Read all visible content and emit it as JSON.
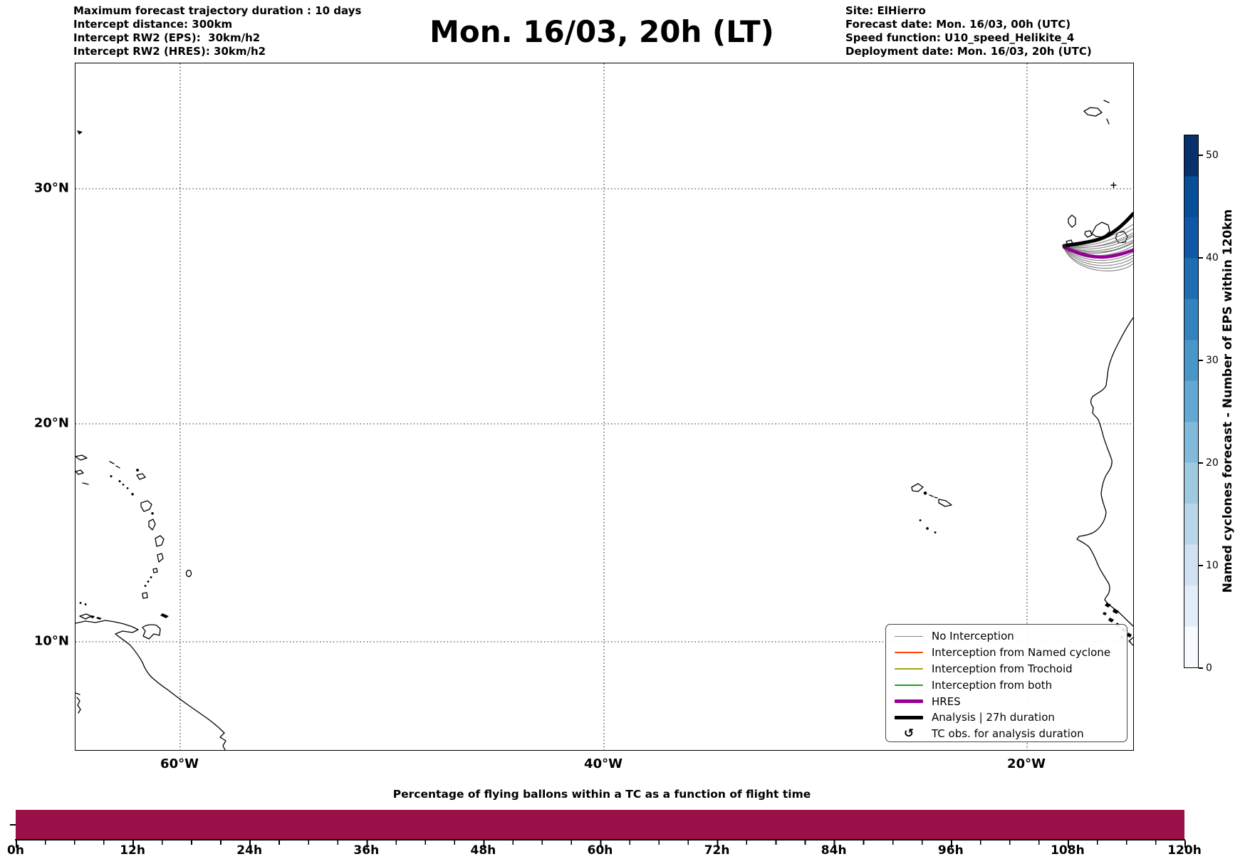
{
  "header": {
    "left_lines": [
      "Maximum forecast trajectory duration : 10 days",
      "Intercept distance: 300km",
      "Intercept RW2 (EPS):  30km/h2",
      "Intercept RW2 (HRES): 30km/h2"
    ],
    "title": "Mon. 16/03, 20h (LT)",
    "right_lines": [
      "Site: ElHierro",
      "Forecast date: Mon. 16/03, 00h (UTC)",
      "Speed function: U10_speed_Helikite_4",
      "Deployment date: Mon. 16/03, 20h (UTC)"
    ]
  },
  "map": {
    "lat_labels": [
      "30°N",
      "20°N",
      "10°N"
    ],
    "lon_labels": [
      "60°W",
      "40°W",
      "20°W"
    ],
    "coast_features": [
      "Bermuda",
      "Puerto Rico & Virgin Islands",
      "Lesser Antilles arc",
      "Barbados",
      "Trinidad & Tobago",
      "Venezuela / South American coast",
      "Cape Verde islands",
      "Madeira",
      "Selvagens",
      "Canary Islands",
      "West African coast (Western Sahara to Guinea)"
    ],
    "legend": {
      "items": [
        {
          "label": "No Interception",
          "color": "#808080",
          "kind": "line",
          "width": 1.8
        },
        {
          "label": "Interception from Named cyclone",
          "color": "#ff4500",
          "kind": "line",
          "width": 1.8
        },
        {
          "label": "Interception from Trochoid",
          "color": "#a6a018",
          "kind": "line",
          "width": 1.8
        },
        {
          "label": "Interception from both",
          "color": "#21a121",
          "kind": "line",
          "width": 1.8
        },
        {
          "label": "HRES",
          "color": "#930093",
          "kind": "line",
          "width": 5
        },
        {
          "label": "Analysis | 27h duration",
          "color": "#000000",
          "kind": "line",
          "width": 5
        },
        {
          "label": "TC obs. for analysis duration",
          "color": "#000000",
          "kind": "marker",
          "marker": "↺"
        }
      ]
    },
    "trajectory_colors": {
      "analysis": "#000000",
      "hres": "#930093",
      "eps_member": "#7a7a7a"
    }
  },
  "colorbar": {
    "label": "Named cyclones forecast - Number of EPS within 120km",
    "ticks": [
      "0",
      "10",
      "20",
      "30",
      "40",
      "50"
    ],
    "max_value": 52,
    "colors_bottom_to_top": [
      "#f7fbff",
      "#e1edf8",
      "#cfe1f2",
      "#b9d5ea",
      "#9ecae1",
      "#82badb",
      "#63a8d3",
      "#4997c9",
      "#3283be",
      "#1f6eb3",
      "#1057a7",
      "#084e98",
      "#08306b"
    ]
  },
  "bottom_chart": {
    "title": "Percentage of flying ballons within a TC as a function of flight time",
    "x_tick_labels": [
      "0h",
      "12h",
      "24h",
      "36h",
      "48h",
      "60h",
      "72h",
      "84h",
      "96h",
      "108h",
      "120h"
    ],
    "bar_color": "#9b1048"
  },
  "chart_data": [
    {
      "type": "bar",
      "title": "Percentage of flying ballons within a TC as a function of flight time",
      "x_range_hours": [
        0,
        120
      ],
      "x_major_ticks_hours": [
        0,
        12,
        24,
        36,
        48,
        60,
        72,
        84,
        96,
        108,
        120
      ],
      "x_minor_step_hours": 3,
      "series": [
        {
          "name": "percentage of flying balloons within a TC",
          "description": "single full-height bar spanning 0h-120h (constant, reads as maximum/100% for the whole flight window)",
          "constant_value_percent": 100
        }
      ],
      "bar_color": "#9b1048",
      "grid": false,
      "legend_position": "none"
    },
    {
      "type": "line",
      "title": "Balloon trajectory forecast map (Mercator)",
      "region": {
        "lon_range_deg": [
          -65,
          -15
        ],
        "lat_range_deg": [
          5,
          35
        ]
      },
      "gridlines": {
        "lat_deg_n": [
          10,
          20,
          30
        ],
        "lon_deg_w": [
          60,
          40,
          20
        ],
        "style": "dotted"
      },
      "deployment_site": "ElHierro (Canary Islands, ~18°W / 27.7°N)",
      "series": [
        {
          "name": "Analysis | 27h duration",
          "color": "#000000",
          "approx_points_lon_lat": [
            [
              -18.1,
              27.6
            ],
            [
              -17.0,
              27.8
            ],
            [
              -16.0,
              28.3
            ],
            [
              -15.0,
              29.3
            ]
          ]
        },
        {
          "name": "HRES",
          "color": "#930093",
          "approx_points_lon_lat": [
            [
              -18.1,
              27.5
            ],
            [
              -17.0,
              26.9
            ],
            [
              -16.0,
              26.8
            ],
            [
              -15.0,
              27.2
            ]
          ]
        },
        {
          "name": "EPS ensemble (No Interception)",
          "color": "#7a7a7a",
          "members_description": "~15 grey member trajectories fanning east from El Hierro toward the African coast between ~26.3°N and ~28.6°N at 15°W"
        }
      ],
      "legend_position": "lower right"
    }
  ]
}
